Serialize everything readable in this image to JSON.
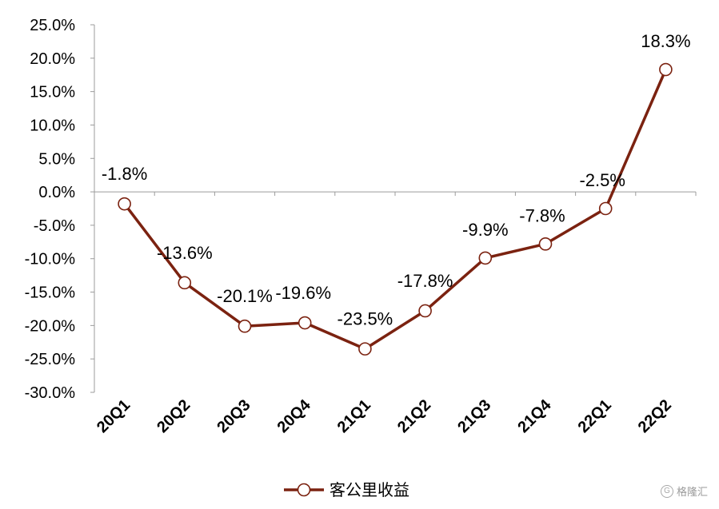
{
  "chart_data": {
    "type": "line",
    "title": "",
    "xlabel": "",
    "ylabel": "",
    "categories": [
      "20Q1",
      "20Q2",
      "20Q3",
      "20Q4",
      "21Q1",
      "21Q2",
      "21Q3",
      "21Q4",
      "22Q1",
      "22Q2"
    ],
    "series": [
      {
        "name": "客公里收益",
        "values": [
          -1.8,
          -13.6,
          -20.1,
          -19.6,
          -23.5,
          -17.8,
          -9.9,
          -7.8,
          -2.5,
          18.3
        ],
        "data_labels": [
          "-1.8%",
          "-13.6%",
          "-20.1%",
          "-19.6%",
          "-23.5%",
          "-17.8%",
          "-9.9%",
          "-7.8%",
          "-2.5%",
          "18.3%"
        ],
        "color": "#7B2210"
      }
    ],
    "ylim": [
      -30,
      25
    ],
    "y_ticks": [
      25,
      20,
      15,
      10,
      5,
      0,
      -5,
      -10,
      -15,
      -20,
      -25,
      -30
    ],
    "y_tick_labels": [
      "25.0%",
      "20.0%",
      "15.0%",
      "10.0%",
      "5.0%",
      "0.0%",
      "-5.0%",
      "-10.0%",
      "-15.0%",
      "-20.0%",
      "-25.0%",
      "-30.0%"
    ],
    "grid": false,
    "legend_position": "bottom-center",
    "marker": "hollow-circle"
  },
  "watermark": {
    "text": "格隆汇",
    "logo_icon": "G"
  }
}
